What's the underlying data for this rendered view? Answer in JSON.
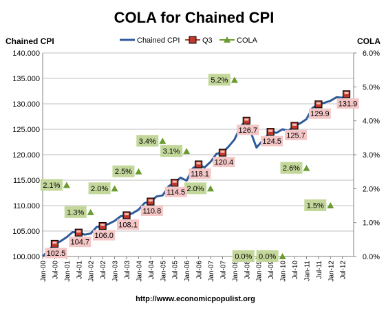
{
  "chart_data": {
    "type": "line",
    "title": "COLA for Chained CPI",
    "left_axis_label": "Chained CPI",
    "right_axis_label": "COLA",
    "source_url": "http://www.economicpopulist.org",
    "legend": {
      "placement": "top-center",
      "entries": [
        {
          "name": "Chained CPI",
          "marker": "line",
          "color": "#2e5a9a"
        },
        {
          "name": "Q3",
          "marker": "square",
          "color": "#c0392b"
        },
        {
          "name": "COLA",
          "marker": "triangle",
          "color": "#6a9a30"
        }
      ]
    },
    "colors": {
      "line": "#2e5a9a",
      "q3_marker": "#c0392b",
      "q3_label_bg": "#f5c6c6",
      "cola_marker": "#6a9a30",
      "cola_label_bg": "#c4d79b",
      "grid": "#bfbfbf"
    },
    "left_axis": {
      "min": 100,
      "max": 140,
      "ticks": [
        "100.000",
        "105.000",
        "110.000",
        "115.000",
        "120.000",
        "125.000",
        "130.000",
        "135.000",
        "140.000"
      ]
    },
    "right_axis": {
      "min": 0,
      "max": 6,
      "ticks": [
        "0.0%",
        "1.0%",
        "2.0%",
        "3.0%",
        "4.0%",
        "5.0%",
        "6.0%"
      ]
    },
    "x_ticks": [
      "Jan-00",
      "Jul-00",
      "Jan-01",
      "Jul-01",
      "Jan-02",
      "Jul-02",
      "Jan-03",
      "Jul-03",
      "Jan-04",
      "Jul-04",
      "Jan-05",
      "Jul-05",
      "Jan-06",
      "Jul-06",
      "Jan-07",
      "Jul-07",
      "Jan-08",
      "Jul-08",
      "Jan-09",
      "Jul-09",
      "Jan-10",
      "Jul-10",
      "Jan-11",
      "Jul-11",
      "Jan-12",
      "Jul-12"
    ],
    "grid": {
      "horizontal": true,
      "vertical": false
    },
    "chained_cpi_series": {
      "name": "Chained CPI",
      "dates": [
        "2000-01",
        "2000-04",
        "2000-07",
        "2000-10",
        "2001-01",
        "2001-04",
        "2001-07",
        "2001-10",
        "2002-01",
        "2002-04",
        "2002-07",
        "2002-10",
        "2003-01",
        "2003-04",
        "2003-07",
        "2003-10",
        "2004-01",
        "2004-04",
        "2004-07",
        "2004-10",
        "2005-01",
        "2005-04",
        "2005-07",
        "2005-10",
        "2006-01",
        "2006-04",
        "2006-07",
        "2006-10",
        "2007-01",
        "2007-04",
        "2007-07",
        "2007-10",
        "2008-01",
        "2008-04",
        "2008-07",
        "2008-10",
        "2008-12",
        "2009-04",
        "2009-07",
        "2009-10",
        "2010-01",
        "2010-04",
        "2010-07",
        "2010-10",
        "2011-01",
        "2011-04",
        "2011-07",
        "2011-10",
        "2012-01",
        "2012-04",
        "2012-07",
        "2012-09"
      ],
      "values": [
        100.0,
        101.2,
        102.5,
        103.0,
        103.8,
        104.8,
        104.7,
        104.3,
        104.5,
        105.8,
        106.0,
        106.4,
        107.0,
        107.9,
        108.1,
        108.5,
        109.2,
        110.5,
        110.8,
        111.8,
        112.0,
        113.8,
        114.5,
        115.5,
        114.9,
        117.3,
        118.1,
        117.5,
        118.6,
        120.2,
        120.4,
        121.6,
        123.0,
        125.6,
        126.7,
        123.5,
        121.4,
        123.2,
        124.5,
        124.3,
        125.0,
        124.7,
        125.7,
        126.2,
        127.0,
        129.2,
        129.9,
        130.2,
        130.6,
        131.3,
        131.2,
        131.9
      ]
    },
    "q3_points": [
      {
        "date": "2000-07",
        "value": 102.5,
        "label": "102.5"
      },
      {
        "date": "2001-07",
        "value": 104.7,
        "label": "104.7"
      },
      {
        "date": "2002-07",
        "value": 106.0,
        "label": "106.0"
      },
      {
        "date": "2003-07",
        "value": 108.1,
        "label": "108.1"
      },
      {
        "date": "2004-07",
        "value": 110.8,
        "label": "110.8"
      },
      {
        "date": "2005-07",
        "value": 114.5,
        "label": "114.5"
      },
      {
        "date": "2006-07",
        "value": 118.1,
        "label": "118.1"
      },
      {
        "date": "2007-07",
        "value": 120.4,
        "label": "120.4"
      },
      {
        "date": "2008-07",
        "value": 126.7,
        "label": "126.7"
      },
      {
        "date": "2009-07",
        "value": 124.5,
        "label": "124.5"
      },
      {
        "date": "2010-07",
        "value": 125.7,
        "label": "125.7"
      },
      {
        "date": "2011-07",
        "value": 129.9,
        "label": "129.9"
      },
      {
        "date": "2012-09",
        "value": 131.9,
        "label": "131.9"
      }
    ],
    "cola_points": [
      {
        "date": "2001-01",
        "value": 2.1,
        "label": "2.1%"
      },
      {
        "date": "2002-01",
        "value": 1.3,
        "label": "1.3%"
      },
      {
        "date": "2003-01",
        "value": 2.0,
        "label": "2.0%"
      },
      {
        "date": "2004-01",
        "value": 2.5,
        "label": "2.5%"
      },
      {
        "date": "2005-01",
        "value": 3.4,
        "label": "3.4%"
      },
      {
        "date": "2006-01",
        "value": 3.1,
        "label": "3.1%"
      },
      {
        "date": "2007-01",
        "value": 2.0,
        "label": "2.0%"
      },
      {
        "date": "2008-01",
        "value": 5.2,
        "label": "5.2%"
      },
      {
        "date": "2009-01",
        "value": 0.0,
        "label": "0.0%"
      },
      {
        "date": "2010-01",
        "value": 0.0,
        "label": "0.0%"
      },
      {
        "date": "2011-01",
        "value": 2.6,
        "label": "2.6%"
      },
      {
        "date": "2012-01",
        "value": 1.5,
        "label": "1.5%"
      }
    ]
  }
}
